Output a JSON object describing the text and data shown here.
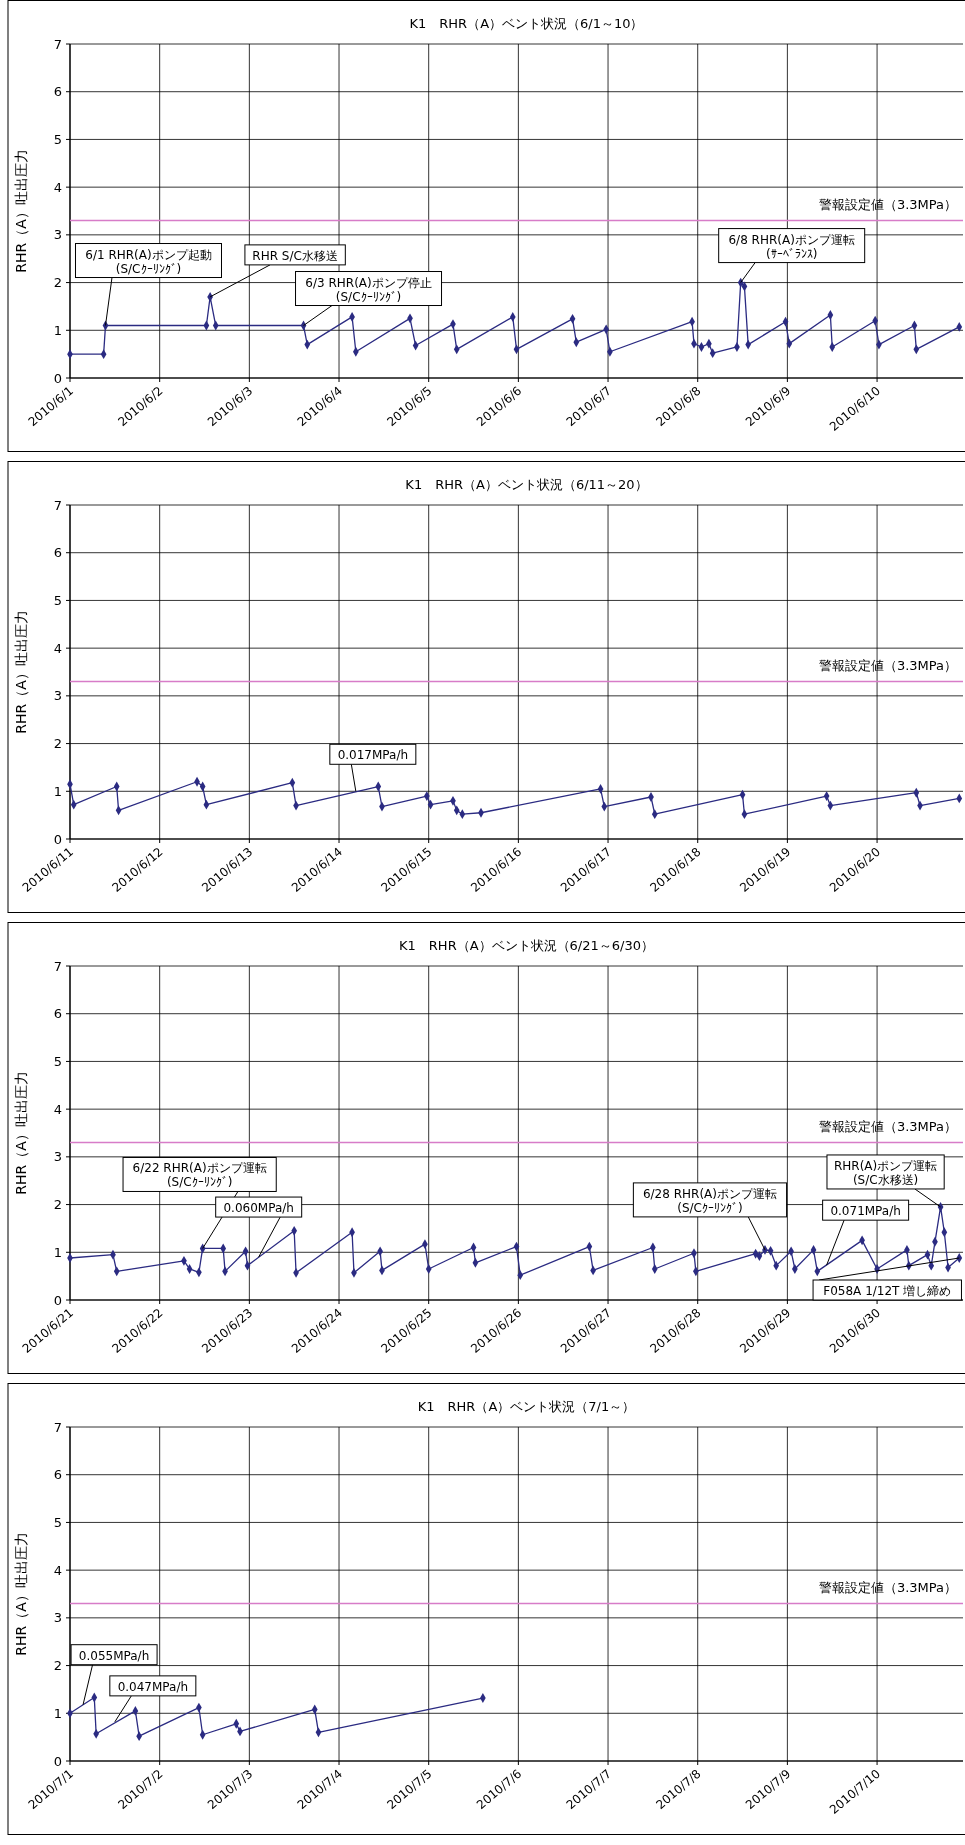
{
  "chart_data": [
    {
      "type": "line",
      "title": "K1　RHR（A）ベント状況（6/1～10）",
      "ylabel": "RHR（A）吐出圧力",
      "color": "#2b2b82",
      "marker": "diamond",
      "grid": true,
      "x": [
        "2010-06-01T00:00",
        "2010-06-01T09:00",
        "2010-06-01T09:30",
        "2010-06-02T12:30",
        "2010-06-02T13:30",
        "2010-06-02T15:00",
        "2010-06-03T14:30",
        "2010-06-03T15:30",
        "2010-06-04T03:30",
        "2010-06-04T04:30",
        "2010-06-04T19:00",
        "2010-06-04T20:30",
        "2010-06-05T06:30",
        "2010-06-05T07:30",
        "2010-06-05T22:30",
        "2010-06-05T23:30",
        "2010-06-06T14:30",
        "2010-06-06T15:30",
        "2010-06-06T23:30",
        "2010-06-07T00:30",
        "2010-06-07T22:30",
        "2010-06-07T23:00",
        "2010-06-08T01:00",
        "2010-06-08T03:00",
        "2010-06-08T04:00",
        "2010-06-08T10:30",
        "2010-06-08T11:30",
        "2010-06-08T12:30",
        "2010-06-08T13:30",
        "2010-06-08T23:30",
        "2010-06-09T00:30",
        "2010-06-09T11:30",
        "2010-06-09T12:00",
        "2010-06-09T23:30",
        "2010-06-10T00:30",
        "2010-06-10T10:00",
        "2010-06-10T10:30",
        "2010-06-10T22:00"
      ],
      "values": [
        0.5,
        0.5,
        1.1,
        1.1,
        1.7,
        1.1,
        1.1,
        0.7,
        1.28,
        0.55,
        1.25,
        0.68,
        1.13,
        0.6,
        1.28,
        0.6,
        1.24,
        0.75,
        1.02,
        0.55,
        1.18,
        0.72,
        0.65,
        0.72,
        0.52,
        0.65,
        2.0,
        1.92,
        0.7,
        1.18,
        0.72,
        1.32,
        0.65,
        1.2,
        0.7,
        1.1,
        0.6,
        1.07
      ],
      "xlim": [
        "2010-06-01",
        "2010-06-10T23:00"
      ],
      "ylim": [
        0,
        7
      ],
      "yticks": [
        0,
        1,
        2,
        3,
        4,
        5,
        6,
        7
      ],
      "xticks": [
        {
          "value": "2010-06-01",
          "label": "2010/6/1"
        },
        {
          "value": "2010-06-02",
          "label": "2010/6/2"
        },
        {
          "value": "2010-06-03",
          "label": "2010/6/3"
        },
        {
          "value": "2010-06-04",
          "label": "2010/6/4"
        },
        {
          "value": "2010-06-05",
          "label": "2010/6/5"
        },
        {
          "value": "2010-06-06",
          "label": "2010/6/6"
        },
        {
          "value": "2010-06-07",
          "label": "2010/6/7"
        },
        {
          "value": "2010-06-08",
          "label": "2010/6/8"
        },
        {
          "value": "2010-06-09",
          "label": "2010/6/9"
        },
        {
          "value": "2010-06-10",
          "label": "2010/6/10"
        }
      ],
      "ref_lines": [
        {
          "axis": "y",
          "value": 3.3,
          "label": "警報設定値（3.3MPa）",
          "color": "#d77cc8"
        }
      ],
      "annotations": [
        {
          "text": "6/1 RHR(A)ポンプ起動\n(S/Cｸｰﾘﾝｸﾞ)",
          "x": "2010-06-01T09:30",
          "y": 1.1
        },
        {
          "text": "RHR S/C水移送",
          "x": "2010-06-02T13:30",
          "y": 1.7
        },
        {
          "text": "6/3 RHR(A)ポンプ停止\n(S/Cｸｰﾘﾝｸﾞ)",
          "x": "2010-06-03T14:30",
          "y": 1.1
        },
        {
          "text": "6/8 RHR(A)ポンプ運転\n(ｻｰﾍﾞﾗﾝｽ)",
          "x": "2010-06-08T11:30",
          "y": 2.0
        }
      ]
    },
    {
      "type": "line",
      "title": "K1　RHR（A）ベント状況（6/11～20）",
      "ylabel": "RHR（A）吐出圧力",
      "color": "#2b2b82",
      "marker": "diamond",
      "grid": true,
      "x": [
        "2010-06-11T00:00",
        "2010-06-11T01:00",
        "2010-06-11T12:30",
        "2010-06-11T13:00",
        "2010-06-12T10:00",
        "2010-06-12T11:30",
        "2010-06-12T12:30",
        "2010-06-13T11:30",
        "2010-06-13T12:30",
        "2010-06-14T10:30",
        "2010-06-14T11:30",
        "2010-06-14T23:30",
        "2010-06-15T00:30",
        "2010-06-15T06:30",
        "2010-06-15T07:30",
        "2010-06-15T09:00",
        "2010-06-15T14:00",
        "2010-06-16T22:00",
        "2010-06-16T23:00",
        "2010-06-17T11:30",
        "2010-06-17T12:30",
        "2010-06-18T12:00",
        "2010-06-18T12:30",
        "2010-06-19T10:30",
        "2010-06-19T11:30",
        "2010-06-20T10:30",
        "2010-06-20T11:30",
        "2010-06-20T22:00"
      ],
      "values": [
        1.15,
        0.72,
        1.1,
        0.6,
        1.2,
        1.1,
        0.72,
        1.18,
        0.7,
        1.1,
        0.68,
        0.9,
        0.72,
        0.8,
        0.6,
        0.52,
        0.55,
        1.05,
        0.68,
        0.88,
        0.52,
        0.93,
        0.52,
        0.9,
        0.7,
        0.97,
        0.7,
        0.85
      ],
      "xlim": [
        "2010-06-11",
        "2010-06-20T23:00"
      ],
      "ylim": [
        0,
        7
      ],
      "yticks": [
        0,
        1,
        2,
        3,
        4,
        5,
        6,
        7
      ],
      "xticks": [
        {
          "value": "2010-06-11",
          "label": "2010/6/11"
        },
        {
          "value": "2010-06-12",
          "label": "2010/6/12"
        },
        {
          "value": "2010-06-13",
          "label": "2010/6/13"
        },
        {
          "value": "2010-06-14",
          "label": "2010/6/14"
        },
        {
          "value": "2010-06-15",
          "label": "2010/6/15"
        },
        {
          "value": "2010-06-16",
          "label": "2010/6/16"
        },
        {
          "value": "2010-06-17",
          "label": "2010/6/17"
        },
        {
          "value": "2010-06-18",
          "label": "2010/6/18"
        },
        {
          "value": "2010-06-19",
          "label": "2010/6/19"
        },
        {
          "value": "2010-06-20",
          "label": "2010/6/20"
        }
      ],
      "ref_lines": [
        {
          "axis": "y",
          "value": 3.3,
          "label": "警報設定値（3.3MPa）",
          "color": "#d77cc8"
        }
      ],
      "annotations": [
        {
          "text": "0.017MPa/h",
          "x": "2010-06-14T04:30",
          "y": 1.0
        }
      ]
    },
    {
      "type": "line",
      "title": "K1　RHR（A）ベント状況（6/21～6/30）",
      "ylabel": "RHR（A）吐出圧力",
      "color": "#2b2b82",
      "marker": "diamond",
      "grid": true,
      "x": [
        "2010-06-21T00:00",
        "2010-06-21T11:30",
        "2010-06-21T12:30",
        "2010-06-22T06:30",
        "2010-06-22T08:00",
        "2010-06-22T10:30",
        "2010-06-22T11:30",
        "2010-06-22T17:00",
        "2010-06-22T17:30",
        "2010-06-22T23:00",
        "2010-06-22T23:30",
        "2010-06-23T12:00",
        "2010-06-23T12:30",
        "2010-06-24T03:30",
        "2010-06-24T04:00",
        "2010-06-24T11:00",
        "2010-06-24T11:30",
        "2010-06-24T23:00",
        "2010-06-25T00:00",
        "2010-06-25T12:00",
        "2010-06-25T12:30",
        "2010-06-25T23:30",
        "2010-06-26T00:30",
        "2010-06-26T19:00",
        "2010-06-26T20:00",
        "2010-06-27T12:00",
        "2010-06-27T12:30",
        "2010-06-27T23:00",
        "2010-06-27T23:30",
        "2010-06-28T15:30",
        "2010-06-28T16:30",
        "2010-06-28T18:00",
        "2010-06-28T19:30",
        "2010-06-28T21:00",
        "2010-06-29T01:00",
        "2010-06-29T02:00",
        "2010-06-29T07:00",
        "2010-06-29T08:00",
        "2010-06-29T20:00",
        "2010-06-30T00:00",
        "2010-06-30T08:00",
        "2010-06-30T08:30",
        "2010-06-30T13:30",
        "2010-06-30T14:30",
        "2010-06-30T15:30",
        "2010-06-30T17:00",
        "2010-06-30T18:00",
        "2010-06-30T19:00",
        "2010-06-30T22:00"
      ],
      "values": [
        0.88,
        0.95,
        0.6,
        0.82,
        0.65,
        0.58,
        1.08,
        1.08,
        0.6,
        1.02,
        0.72,
        1.45,
        0.57,
        1.42,
        0.57,
        1.02,
        0.62,
        1.17,
        0.65,
        1.1,
        0.78,
        1.12,
        0.52,
        1.12,
        0.62,
        1.1,
        0.65,
        0.98,
        0.6,
        0.97,
        0.92,
        1.05,
        1.03,
        0.72,
        1.02,
        0.65,
        1.05,
        0.6,
        1.25,
        0.65,
        1.05,
        0.72,
        0.95,
        0.72,
        1.22,
        1.95,
        1.42,
        0.68,
        0.88
      ],
      "xlim": [
        "2010-06-21",
        "2010-06-30T23:00"
      ],
      "ylim": [
        0,
        7
      ],
      "yticks": [
        0,
        1,
        2,
        3,
        4,
        5,
        6,
        7
      ],
      "xticks": [
        {
          "value": "2010-06-21",
          "label": "2010/6/21"
        },
        {
          "value": "2010-06-22",
          "label": "2010/6/22"
        },
        {
          "value": "2010-06-23",
          "label": "2010/6/23"
        },
        {
          "value": "2010-06-24",
          "label": "2010/6/24"
        },
        {
          "value": "2010-06-25",
          "label": "2010/6/25"
        },
        {
          "value": "2010-06-26",
          "label": "2010/6/26"
        },
        {
          "value": "2010-06-27",
          "label": "2010/6/27"
        },
        {
          "value": "2010-06-28",
          "label": "2010/6/28"
        },
        {
          "value": "2010-06-29",
          "label": "2010/6/29"
        },
        {
          "value": "2010-06-30",
          "label": "2010/6/30"
        }
      ],
      "ref_lines": [
        {
          "axis": "y",
          "value": 3.3,
          "label": "警報設定値（3.3MPa）",
          "color": "#d77cc8"
        }
      ],
      "annotations": [
        {
          "text": "6/22 RHR(A)ポンプ運転\n(S/Cｸｰﾘﾝｸﾞ)",
          "x": "2010-06-22T11:30",
          "y": 1.08
        },
        {
          "text": "0.060MPa/h",
          "x": "2010-06-23T02:30",
          "y": 0.9
        },
        {
          "text": "6/28 RHR(A)ポンプ運転\n(S/Cｸｰﾘﾝｸﾞ)",
          "x": "2010-06-28T18:00",
          "y": 1.05
        },
        {
          "text": "0.071MPa/h",
          "x": "2010-06-29T10:30",
          "y": 0.73
        },
        {
          "text": "RHR(A)ポンプ運転\n(S/C水移送)",
          "x": "2010-06-30T17:00",
          "y": 1.95
        },
        {
          "text": "F058A 1/12T 増し締め",
          "x": "2010-06-30T22:00",
          "y": 0.88
        }
      ]
    },
    {
      "type": "line",
      "title": "K1　RHR（A）ベント状況（7/1～）",
      "ylabel": "RHR（A）吐出圧力",
      "color": "#2b2b82",
      "marker": "diamond",
      "grid": true,
      "x": [
        "2010-07-01T00:00",
        "2010-07-01T06:30",
        "2010-07-01T07:00",
        "2010-07-01T17:30",
        "2010-07-01T18:30",
        "2010-07-02T10:30",
        "2010-07-02T11:30",
        "2010-07-02T20:30",
        "2010-07-02T21:30",
        "2010-07-03T17:30",
        "2010-07-03T18:30",
        "2010-07-05T14:30"
      ],
      "values": [
        1.0,
        1.33,
        0.57,
        1.05,
        0.52,
        1.12,
        0.55,
        0.78,
        0.62,
        1.08,
        0.6,
        1.32
      ],
      "xlim": [
        "2010-07-01",
        "2010-07-10T23:00"
      ],
      "ylim": [
        0,
        7
      ],
      "yticks": [
        0,
        1,
        2,
        3,
        4,
        5,
        6,
        7
      ],
      "xticks": [
        {
          "value": "2010-07-01",
          "label": "2010/7/1"
        },
        {
          "value": "2010-07-02",
          "label": "2010/7/2"
        },
        {
          "value": "2010-07-03",
          "label": "2010/7/3"
        },
        {
          "value": "2010-07-04",
          "label": "2010/7/4"
        },
        {
          "value": "2010-07-05",
          "label": "2010/7/5"
        },
        {
          "value": "2010-07-06",
          "label": "2010/7/6"
        },
        {
          "value": "2010-07-07",
          "label": "2010/7/7"
        },
        {
          "value": "2010-07-08",
          "label": "2010/7/8"
        },
        {
          "value": "2010-07-09",
          "label": "2010/7/9"
        },
        {
          "value": "2010-07-10",
          "label": "2010/7/10"
        }
      ],
      "ref_lines": [
        {
          "axis": "y",
          "value": 3.3,
          "label": "警報設定値（3.3MPa）",
          "color": "#d77cc8"
        }
      ],
      "annotations": [
        {
          "text": "0.055MPa/h",
          "x": "2010-07-01T03:30",
          "y": 1.18
        },
        {
          "text": "0.047MPa/h",
          "x": "2010-07-01T12:00",
          "y": 0.82
        }
      ]
    }
  ]
}
